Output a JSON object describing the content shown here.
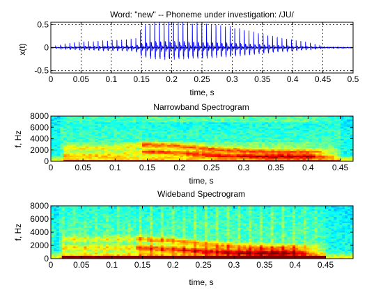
{
  "chart_data": [
    {
      "type": "line",
      "title": "Word: \"new\" --  Phoneme under investigation: /JU/",
      "xlabel": "time, s",
      "ylabel": "x(t)",
      "xlim": [
        0,
        0.5
      ],
      "ylim": [
        -0.55,
        0.55
      ],
      "xticks": [
        "0",
        "0.05",
        "0.1",
        "0.15",
        "0.2",
        "0.25",
        "0.3",
        "0.35",
        "0.4",
        "0.45",
        "0.5"
      ],
      "yticks": [
        "0.5",
        "0",
        "-0.5"
      ],
      "grid": true,
      "line_color": "#0000ff",
      "envelope": {
        "t": [
          0,
          0.01,
          0.02,
          0.05,
          0.1,
          0.14,
          0.15,
          0.17,
          0.2,
          0.25,
          0.3,
          0.35,
          0.38,
          0.42,
          0.44,
          0.45,
          0.46,
          0.5
        ],
        "amp": [
          0.01,
          0.03,
          0.08,
          0.12,
          0.15,
          0.18,
          0.4,
          0.55,
          0.55,
          0.5,
          0.42,
          0.28,
          0.2,
          0.12,
          0.06,
          0.02,
          0.01,
          0.01
        ]
      },
      "pitch_period_s": 0.0078
    },
    {
      "type": "heatmap",
      "title": "Narrowband Spectrogram",
      "xlabel": "time, s",
      "ylabel": "f, Hz",
      "xlim": [
        0,
        0.47
      ],
      "ylim": [
        0,
        8000
      ],
      "xticks": [
        "0",
        "0.05",
        "0.1",
        "0.15",
        "0.2",
        "0.25",
        "0.3",
        "0.35",
        "0.4",
        "0.45"
      ],
      "yticks": [
        "8000",
        "6000",
        "4000",
        "2000",
        "0"
      ],
      "colormap": "jet",
      "formant_tracks": [
        {
          "t": [
            0.1,
            0.15,
            0.2,
            0.25,
            0.3,
            0.35,
            0.4,
            0.45
          ],
          "f": [
            2400,
            3000,
            2700,
            2200,
            1900,
            1700,
            1700,
            1800
          ]
        },
        {
          "t": [
            0.1,
            0.15,
            0.2,
            0.25,
            0.3,
            0.35,
            0.4,
            0.45
          ],
          "f": [
            1200,
            1700,
            1500,
            1200,
            1000,
            900,
            900,
            900
          ]
        }
      ]
    },
    {
      "type": "heatmap",
      "title": "Wideband Spectrogram",
      "xlabel": "time, s",
      "ylabel": "f, Hz",
      "xlim": [
        0,
        0.495
      ],
      "ylim": [
        0,
        8000
      ],
      "xticks": [
        "0",
        "0.05",
        "0.1",
        "0.15",
        "0.2",
        "0.25",
        "0.3",
        "0.35",
        "0.4",
        "0.45"
      ],
      "yticks": [
        "8000",
        "6000",
        "4000",
        "2000",
        "0"
      ],
      "colormap": "jet",
      "formant_tracks": [
        {
          "t": [
            0.15,
            0.2,
            0.25,
            0.3,
            0.35,
            0.4,
            0.45
          ],
          "f": [
            3000,
            2700,
            2200,
            1900,
            1700,
            1700,
            1800
          ]
        },
        {
          "t": [
            0.15,
            0.2,
            0.25,
            0.3,
            0.35,
            0.4,
            0.45
          ],
          "f": [
            1700,
            1500,
            1200,
            1000,
            900,
            900,
            900
          ]
        }
      ]
    }
  ]
}
